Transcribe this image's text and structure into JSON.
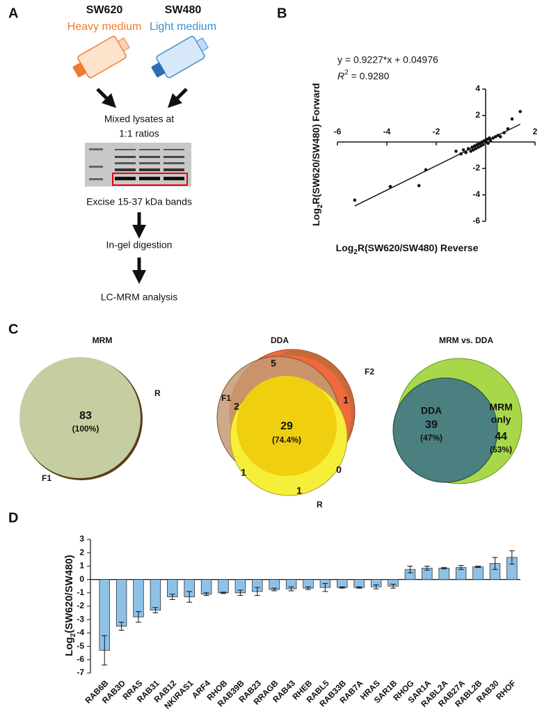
{
  "panel_labels": [
    "A",
    "B",
    "C",
    "D"
  ],
  "workflow": {
    "cell_lines": [
      {
        "name": "SW620",
        "medium": "Heavy medium",
        "color": "#f07a30"
      },
      {
        "name": "SW480",
        "medium": "Light medium",
        "color": "#3a8fd0"
      }
    ],
    "steps": [
      "Mixed lysates at",
      "1:1 ratios",
      "Excise 15-37 kDa bands",
      "In-gel digestion",
      "LC-MRM analysis"
    ]
  },
  "venn": [
    {
      "title": "MRM",
      "labels": [
        "83",
        "(100%)",
        "R",
        "F1"
      ]
    },
    {
      "title": "DDA",
      "labels": [
        "5",
        "F2",
        "F1",
        "2",
        "1",
        "29",
        "(74.4%)",
        "0",
        "1",
        "1",
        "R"
      ]
    },
    {
      "title": "MRM vs. DDA",
      "labels": [
        "DDA",
        "39",
        "(47%)",
        "MRM",
        "only",
        "44",
        "(53%)"
      ]
    }
  ],
  "chart_data": [
    {
      "type": "scatter",
      "equation": "y = 0.9227*x + 0.04976",
      "fit": {
        "slope": 0.9227,
        "intercept": 0.04976
      },
      "r2_parts": [
        "R",
        "2",
        " = 0.9280"
      ],
      "x_label_parts": [
        "Log",
        "2",
        "R(SW620/SW480) Reverse"
      ],
      "y_label_parts": [
        "Log",
        "2",
        "R(SW620/SW480) Forward"
      ],
      "x": [
        -5.3,
        -3.86,
        -2.7,
        -2.42,
        -1.2,
        -1.0,
        -0.9,
        -0.8,
        -0.7,
        -0.6,
        -0.55,
        -0.5,
        -0.45,
        -0.4,
        -0.35,
        -0.3,
        -0.25,
        -0.2,
        -0.15,
        -0.1,
        -0.05,
        0.0,
        0.05,
        0.1,
        0.15,
        0.2,
        0.3,
        0.4,
        0.5,
        0.6,
        0.75,
        0.9,
        1.07,
        1.4
      ],
      "y": [
        -4.4,
        -3.37,
        -3.3,
        -2.1,
        -0.7,
        -0.9,
        -0.6,
        -0.8,
        -0.5,
        -0.7,
        -0.4,
        -0.6,
        -0.3,
        -0.5,
        -0.2,
        -0.4,
        -0.1,
        -0.3,
        0.0,
        -0.2,
        0.1,
        0.0,
        0.2,
        -0.1,
        0.3,
        0.1,
        0.3,
        0.4,
        0.5,
        0.4,
        0.7,
        1.0,
        1.74,
        2.3
      ],
      "color": "#111",
      "xlim": [
        -6,
        2
      ],
      "ylim": [
        -6,
        4
      ],
      "xticks": [
        -6,
        -4,
        -2,
        2
      ],
      "yticks": [
        4,
        2,
        -2,
        -4,
        -6
      ]
    },
    {
      "type": "bar",
      "y_label_parts": [
        "Log",
        "2",
        "(SW620/SW480)"
      ],
      "categories": [
        "RAB6B",
        "RAB3D",
        "RRAS",
        "RAB31",
        "RAB12",
        "NKIRAS1",
        "ARF4",
        "RHOB",
        "RAB39B",
        "RAB23",
        "RRAGB",
        "RAB43",
        "RHEB",
        "RABL5",
        "RAB33B",
        "RAB7A",
        "HRAS",
        "SAR1B",
        "RHOG",
        "SAR1A",
        "RABL2A",
        "RAB27A",
        "RABL2B",
        "RAB30",
        "RHOF"
      ],
      "values": [
        -5.3,
        -3.5,
        -2.8,
        -2.3,
        -1.3,
        -1.3,
        -1.1,
        -1.0,
        -1.0,
        -0.9,
        -0.75,
        -0.7,
        -0.65,
        -0.6,
        -0.6,
        -0.6,
        -0.55,
        -0.5,
        0.75,
        0.85,
        0.85,
        0.9,
        0.95,
        1.2,
        1.65
      ],
      "errors": [
        1.1,
        0.3,
        0.4,
        0.2,
        0.2,
        0.4,
        0.1,
        0.05,
        0.2,
        0.3,
        0.1,
        0.15,
        0.1,
        0.3,
        0.05,
        0.05,
        0.15,
        0.15,
        0.25,
        0.15,
        0.05,
        0.15,
        0.05,
        0.45,
        0.5
      ],
      "color": "#8ec1e8",
      "ylim": [
        -7,
        3
      ],
      "yticks": [
        -7,
        -6,
        -5,
        -4,
        -3,
        -2,
        -1,
        0,
        1,
        2,
        3
      ]
    }
  ]
}
